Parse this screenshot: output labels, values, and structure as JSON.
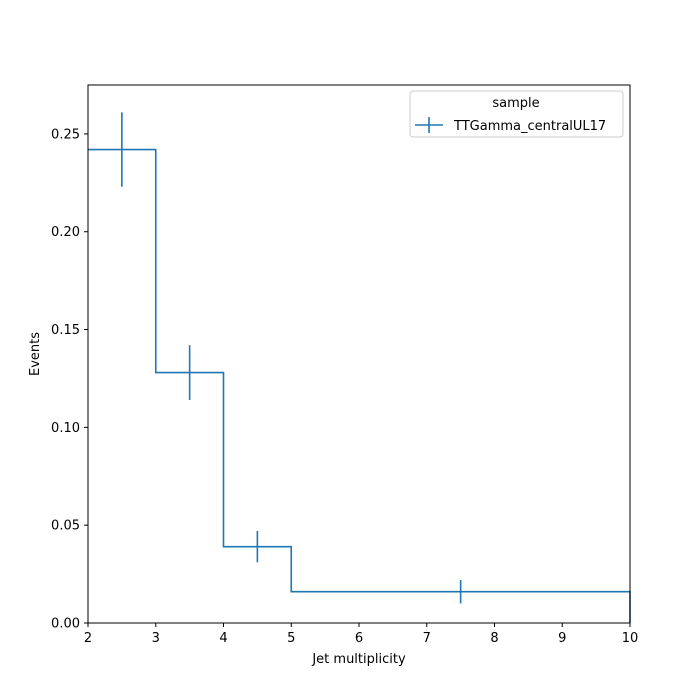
{
  "chart_data": {
    "type": "step-histogram",
    "xlabel": "Jet multiplicity",
    "ylabel": "Events",
    "xlim": [
      2,
      10
    ],
    "ylim": [
      0,
      0.275
    ],
    "xticks": [
      2,
      3,
      4,
      5,
      6,
      7,
      8,
      9,
      10
    ],
    "yticks": [
      0.0,
      0.05,
      0.1,
      0.15,
      0.2,
      0.25
    ],
    "ytick_labels": [
      "0.00",
      "0.05",
      "0.10",
      "0.15",
      "0.20",
      "0.25"
    ],
    "bins": [
      2,
      3,
      4,
      5,
      10
    ],
    "series": [
      {
        "name": "TTGamma_centralUL17",
        "color": "#1f77b4",
        "values": [
          0.242,
          0.128,
          0.039,
          0.016
        ],
        "errors": [
          0.019,
          0.014,
          0.008,
          0.006
        ]
      }
    ],
    "legend": {
      "title": "sample",
      "position": "top-right"
    },
    "grid": false
  }
}
